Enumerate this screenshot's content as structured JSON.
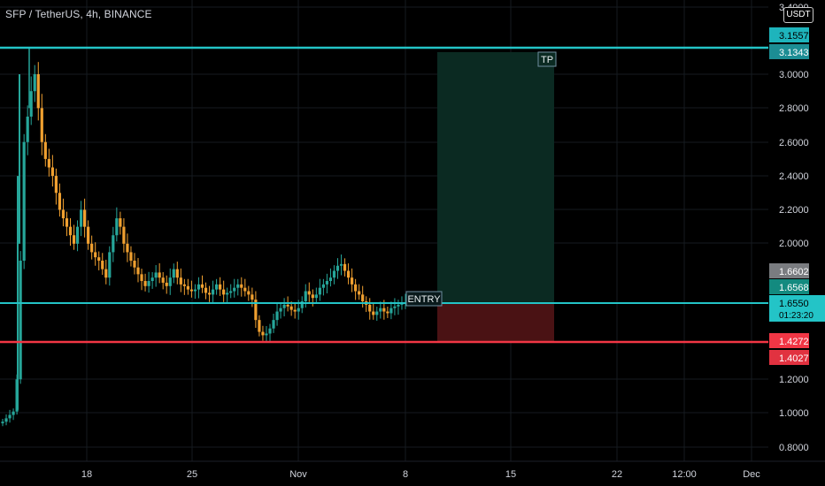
{
  "header": {
    "symbol_title": "SFP / TetherUS, 4h, BINANCE",
    "currency_button": "USDT"
  },
  "price_axis": {
    "tick_labels": [
      "3.4000",
      "3.0000",
      "2.8000",
      "2.6000",
      "2.4000",
      "2.2000",
      "2.0000",
      "1.2000",
      "1.0000",
      "0.8000"
    ]
  },
  "time_axis": {
    "tick_labels": [
      "18",
      "25",
      "Nov",
      "8",
      "15",
      "22",
      "12:00",
      "Dec"
    ]
  },
  "price_badges": [
    {
      "key": "tp_top",
      "text": "3.1557",
      "bg": "#1eb4bc",
      "fg": "#000000"
    },
    {
      "key": "tp",
      "text": "3.1343",
      "bg": "#1c8d94",
      "fg": "#ffffff"
    },
    {
      "key": "high",
      "text": "1.6602",
      "bg": "#7a7c80",
      "fg": "#ffffff"
    },
    {
      "key": "entry",
      "text": "1.6568",
      "bg": "#138a7f",
      "fg": "#ffffff"
    },
    {
      "key": "sl_top",
      "text": "1.4272",
      "bg": "#f23645",
      "fg": "#ffffff"
    },
    {
      "key": "sl",
      "text": "1.4027",
      "bg": "#e13240",
      "fg": "#ffffff"
    }
  ],
  "last_price": {
    "price": "1.6550",
    "countdown": "01:23:20",
    "bg": "#23c4c7",
    "fg": "#000000"
  },
  "annotations": {
    "tp_label": "TP",
    "entry_label": "ENTRY"
  },
  "colors": {
    "line_tp": "#23c4c7",
    "line_entry": "#23c4c7",
    "line_sl": "#f23645",
    "candle_up": "#26a69a",
    "candle_down": "#f0a030",
    "profit_zone": "#0b2a22",
    "loss_zone": "#4a1214"
  },
  "chart_data": {
    "type": "candlestick",
    "title": "SFP / TetherUS, 4h, BINANCE",
    "y_unit": "USDT",
    "ylim": [
      0.75,
      3.4
    ],
    "levels": {
      "take_profit": 3.1343,
      "entry": 1.6568,
      "stop_loss": 1.4027,
      "last": 1.655
    },
    "closes": [
      0.95,
      0.97,
      0.99,
      1.01,
      1.2,
      1.9,
      2.6,
      2.75,
      2.9,
      3.0,
      2.8,
      2.6,
      2.5,
      2.45,
      2.4,
      2.3,
      2.2,
      2.15,
      2.1,
      2.05,
      2.0,
      2.1,
      2.2,
      2.1,
      2.0,
      1.95,
      1.92,
      1.9,
      1.85,
      1.8,
      1.95,
      2.05,
      2.15,
      2.1,
      2.0,
      1.95,
      1.9,
      1.86,
      1.82,
      1.78,
      1.75,
      1.78,
      1.8,
      1.83,
      1.8,
      1.77,
      1.75,
      1.8,
      1.85,
      1.8,
      1.76,
      1.75,
      1.73,
      1.72,
      1.73,
      1.76,
      1.74,
      1.71,
      1.7,
      1.73,
      1.76,
      1.73,
      1.7,
      1.71,
      1.72,
      1.74,
      1.76,
      1.74,
      1.72,
      1.7,
      1.67,
      1.55,
      1.48,
      1.46,
      1.47,
      1.5,
      1.55,
      1.6,
      1.62,
      1.64,
      1.63,
      1.61,
      1.6,
      1.62,
      1.66,
      1.72,
      1.7,
      1.68,
      1.7,
      1.74,
      1.76,
      1.78,
      1.8,
      1.84,
      1.87,
      1.88,
      1.84,
      1.8,
      1.76,
      1.72,
      1.7,
      1.66,
      1.64,
      1.6,
      1.58,
      1.6,
      1.62,
      1.6,
      1.59,
      1.62,
      1.63,
      1.64,
      1.65,
      1.655
    ]
  }
}
